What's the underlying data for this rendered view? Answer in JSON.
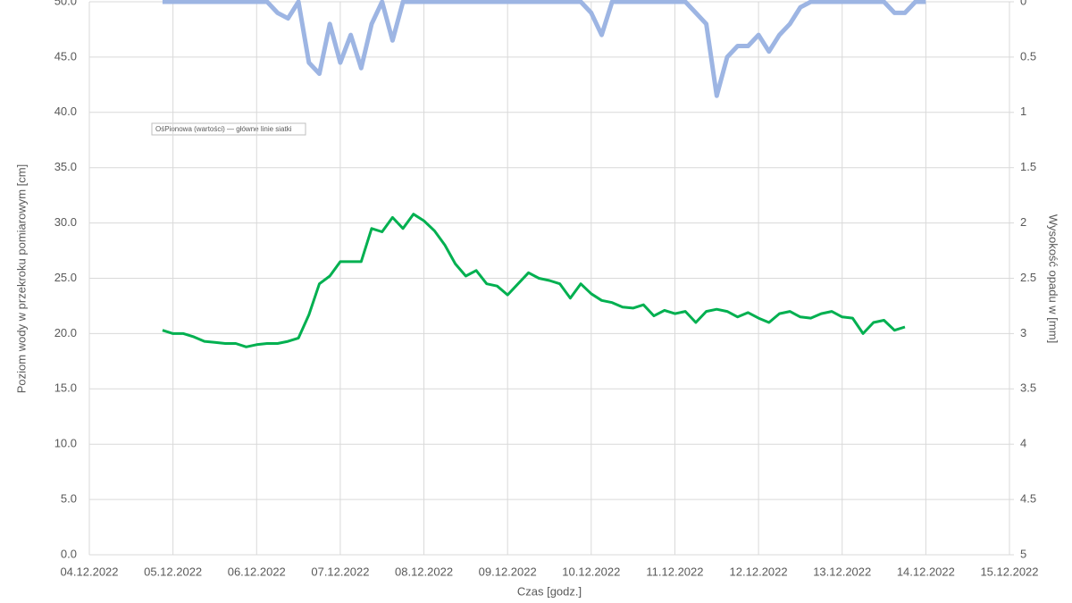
{
  "chart_data": {
    "type": "line",
    "x_label": "Czas [godz.]",
    "y_label": "Poziom wody w przekroku pomiarowym [cm]",
    "y2_label": "Wysokość opadu w [mm]",
    "annotation": "OśPionowa (wartości)   — główne linie siatki",
    "grid": true,
    "xlim": [
      "2022-12-04",
      "2022-12-15"
    ],
    "xticks": [
      {
        "value": "2022-12-04",
        "label": "04.12.2022"
      },
      {
        "value": "2022-12-05",
        "label": "05.12.2022"
      },
      {
        "value": "2022-12-06",
        "label": "06.12.2022"
      },
      {
        "value": "2022-12-07",
        "label": "07.12.2022"
      },
      {
        "value": "2022-12-08",
        "label": "08.12.2022"
      },
      {
        "value": "2022-12-09",
        "label": "09.12.2022"
      },
      {
        "value": "2022-12-10",
        "label": "10.12.2022"
      },
      {
        "value": "2022-12-11",
        "label": "11.12.2022"
      },
      {
        "value": "2022-12-12",
        "label": "12.12.2022"
      },
      {
        "value": "2022-12-13",
        "label": "13.12.2022"
      },
      {
        "value": "2022-12-14",
        "label": "14.12.2022"
      },
      {
        "value": "2022-12-15",
        "label": "15.12.2022"
      }
    ],
    "ylim": [
      0,
      50
    ],
    "yticks": [
      {
        "value": 0,
        "label": "0.0"
      },
      {
        "value": 5,
        "label": "5.0"
      },
      {
        "value": 10,
        "label": "10.0"
      },
      {
        "value": 15,
        "label": "15.0"
      },
      {
        "value": 20,
        "label": "20.0"
      },
      {
        "value": 25,
        "label": "25.0"
      },
      {
        "value": 30,
        "label": "30.0"
      },
      {
        "value": 35,
        "label": "35.0"
      },
      {
        "value": 40,
        "label": "40.0"
      },
      {
        "value": 45,
        "label": "45.0"
      },
      {
        "value": 50,
        "label": "50.0"
      }
    ],
    "y2lim": [
      5,
      0
    ],
    "y2ticks": [
      0,
      0.5,
      1,
      1.5,
      2,
      2.5,
      3,
      3.5,
      4,
      4.5,
      5
    ],
    "x": [
      "2022-12-04T21:00",
      "2022-12-05T00:00",
      "2022-12-05T03:00",
      "2022-12-05T06:00",
      "2022-12-05T09:00",
      "2022-12-05T12:00",
      "2022-12-05T15:00",
      "2022-12-05T18:00",
      "2022-12-05T21:00",
      "2022-12-06T00:00",
      "2022-12-06T03:00",
      "2022-12-06T06:00",
      "2022-12-06T09:00",
      "2022-12-06T12:00",
      "2022-12-06T15:00",
      "2022-12-06T18:00",
      "2022-12-06T21:00",
      "2022-12-07T00:00",
      "2022-12-07T03:00",
      "2022-12-07T06:00",
      "2022-12-07T09:00",
      "2022-12-07T12:00",
      "2022-12-07T15:00",
      "2022-12-07T18:00",
      "2022-12-07T21:00",
      "2022-12-08T00:00",
      "2022-12-08T03:00",
      "2022-12-08T06:00",
      "2022-12-08T09:00",
      "2022-12-08T12:00",
      "2022-12-08T15:00",
      "2022-12-08T18:00",
      "2022-12-08T21:00",
      "2022-12-09T00:00",
      "2022-12-09T03:00",
      "2022-12-09T06:00",
      "2022-12-09T09:00",
      "2022-12-09T12:00",
      "2022-12-09T15:00",
      "2022-12-09T18:00",
      "2022-12-09T21:00",
      "2022-12-10T00:00",
      "2022-12-10T03:00",
      "2022-12-10T06:00",
      "2022-12-10T09:00",
      "2022-12-10T12:00",
      "2022-12-10T15:00",
      "2022-12-10T18:00",
      "2022-12-10T21:00",
      "2022-12-11T00:00",
      "2022-12-11T03:00",
      "2022-12-11T06:00",
      "2022-12-11T09:00",
      "2022-12-11T12:00",
      "2022-12-11T15:00",
      "2022-12-11T18:00",
      "2022-12-11T21:00",
      "2022-12-12T00:00",
      "2022-12-12T03:00",
      "2022-12-12T06:00",
      "2022-12-12T09:00",
      "2022-12-12T12:00",
      "2022-12-12T15:00",
      "2022-12-12T18:00",
      "2022-12-12T21:00",
      "2022-12-13T00:00",
      "2022-12-13T03:00",
      "2022-12-13T06:00",
      "2022-12-13T09:00",
      "2022-12-13T12:00",
      "2022-12-13T15:00",
      "2022-12-13T18:00",
      "2022-12-13T21:00",
      "2022-12-14T00:00"
    ],
    "series": [
      {
        "color": "#9db5e3",
        "axis": "y2",
        "width": 5,
        "values": [
          0,
          0,
          0,
          0,
          0,
          0,
          0,
          0,
          0,
          0,
          0,
          0.1,
          0.15,
          0,
          0.55,
          0.65,
          0.2,
          0.55,
          0.3,
          0.6,
          0.2,
          0,
          0.35,
          0,
          0,
          0,
          0,
          0,
          0,
          0,
          0,
          0,
          0,
          0,
          0,
          0,
          0,
          0,
          0,
          0,
          0,
          0.1,
          0.3,
          0,
          0,
          0,
          0,
          0,
          0,
          0,
          0,
          0.1,
          0.2,
          0.85,
          0.5,
          0.4,
          0.4,
          0.3,
          0.45,
          0.3,
          0.2,
          0.05,
          0,
          0,
          0,
          0,
          0,
          0,
          0,
          0,
          0.1,
          0.1,
          0,
          0
        ]
      },
      {
        "color": "#00b050",
        "width": 3,
        "values": [
          20.3,
          20.0,
          20.0,
          19.7,
          19.3,
          19.2,
          19.1,
          19.1,
          18.8,
          19.0,
          19.1,
          19.1,
          19.3,
          19.6,
          21.7,
          24.5,
          25.2,
          26.5,
          26.5,
          26.5,
          29.5,
          29.2,
          30.5,
          29.5,
          30.8,
          30.2,
          29.3,
          28.0,
          26.3,
          25.2,
          25.7,
          24.5,
          24.3,
          23.5,
          24.5,
          25.5,
          25.0,
          24.8,
          24.5,
          23.2,
          24.5,
          23.6,
          23.0,
          22.8,
          22.4,
          22.3,
          22.6,
          21.6,
          22.1,
          21.8,
          22.0,
          21.0,
          22.0,
          22.2,
          22.0,
          21.5,
          21.9,
          21.4,
          21.0,
          21.8,
          22.0,
          21.5,
          21.4,
          21.8,
          22.0,
          21.5,
          21.4,
          20.0,
          21.0,
          21.2,
          20.3,
          20.6,
          null,
          null
        ]
      }
    ]
  }
}
